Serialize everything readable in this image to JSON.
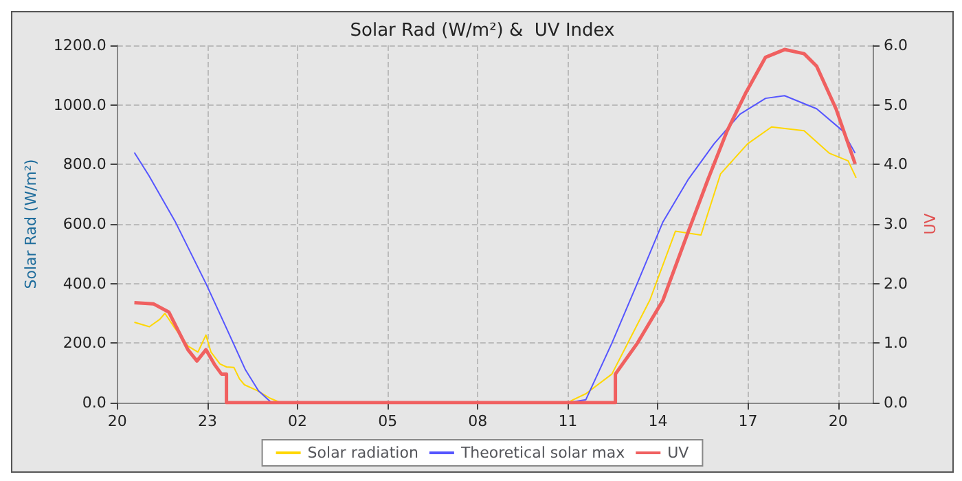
{
  "chart_data": {
    "type": "line",
    "title": "Solar Rad (W/m²) &  UV Index",
    "ylabel": "Solar Rad (W/m²)",
    "y2label": "UV",
    "xlim": [
      "--06-01T20:00",
      "--06-02T21:09"
    ],
    "xticks": [
      {
        "value": "--06-01T20:00",
        "label": "20"
      },
      {
        "value": "--06-01T23:00",
        "label": "23"
      },
      {
        "value": "--06-02T02:00",
        "label": "02"
      },
      {
        "value": "--06-02T05:00",
        "label": "05"
      },
      {
        "value": "--06-02T08:00",
        "label": "08"
      },
      {
        "value": "--06-02T11:00",
        "label": "11"
      },
      {
        "value": "--06-02T14:00",
        "label": "14"
      },
      {
        "value": "--06-02T17:00",
        "label": "17"
      },
      {
        "value": "--06-02T20:00",
        "label": "20"
      }
    ],
    "ylim": [
      0,
      1200
    ],
    "yticks": [
      {
        "value": 0,
        "label": "0.0"
      },
      {
        "value": 200,
        "label": "200.0"
      },
      {
        "value": 400,
        "label": "400.0"
      },
      {
        "value": 600,
        "label": "600.0"
      },
      {
        "value": 800,
        "label": "800.0"
      },
      {
        "value": 1000,
        "label": "1000.0"
      },
      {
        "value": 1200,
        "label": "1200.0"
      }
    ],
    "y2lim": [
      0,
      6
    ],
    "y2ticks": [
      {
        "value": 0,
        "label": "0.0"
      },
      {
        "value": 1,
        "label": "1.0"
      },
      {
        "value": 2,
        "label": "2.0"
      },
      {
        "value": 3,
        "label": "3.0"
      },
      {
        "value": 4,
        "label": "4.0"
      },
      {
        "value": 5,
        "label": "5.0"
      },
      {
        "value": 6,
        "label": "6.0"
      }
    ],
    "grid": true,
    "legend": "bottom",
    "marker": "none",
    "line_style": "solid",
    "series": [
      {
        "name": "Solar radiation",
        "color": "#ffd700",
        "x": [
          "--06-01T20:34",
          "--06-01T21:04",
          "--06-01T21:25",
          "--06-01T21:35",
          "--06-01T21:55",
          "--06-01T22:21",
          "--06-01T22:41",
          "--06-01T22:57",
          "--06-01T23:07",
          "--06-01T23:25",
          "--06-01T23:38",
          "--06-01T23:53",
          "--06-02T00:04",
          "--06-02T00:14",
          "--06-02T00:40",
          "--06-02T01:05",
          "--06-02T01:26",
          "--06-02T11:00",
          "--06-02T11:11",
          "--06-02T11:36",
          "--06-02T12:28",
          "--06-02T13:44",
          "--06-02T14:35",
          "--06-02T15:26",
          "--06-02T16:05",
          "--06-02T16:59",
          "--06-02T17:47",
          "--06-02T18:52",
          "--06-02T19:42",
          "--06-02T20:20",
          "--06-02T20:36"
        ],
        "values": [
          270,
          255,
          280,
          300,
          250,
          190,
          170,
          227,
          170,
          130,
          120,
          118,
          80,
          60,
          40,
          15,
          0,
          0,
          10,
          30,
          96,
          345,
          576,
          563,
          768,
          869,
          926,
          913,
          838,
          812,
          755
        ]
      },
      {
        "name": "Theoretical solar max",
        "color": "#5555ff",
        "x": [
          "--06-01T20:34",
          "--06-01T21:04",
          "--06-01T21:55",
          "--06-01T22:57",
          "--06-01T23:38",
          "--06-02T00:16",
          "--06-02T00:42",
          "--06-02T01:08",
          "--06-02T11:00",
          "--06-02T11:36",
          "--06-02T12:28",
          "--06-02T13:19",
          "--06-02T14:10",
          "--06-02T15:01",
          "--06-02T15:52",
          "--06-02T16:44",
          "--06-02T17:35",
          "--06-02T18:13",
          "--06-02T19:17",
          "--06-02T20:09",
          "--06-02T20:34"
        ],
        "values": [
          840,
          760,
          610,
          400,
          250,
          110,
          40,
          0,
          0,
          10,
          200,
          402,
          607,
          751,
          869,
          969,
          1022,
          1031,
          987,
          913,
          838
        ]
      },
      {
        "name": "UV",
        "color": "#f06060",
        "axis": "y2",
        "x": [
          "--06-01T20:34",
          "--06-01T21:12",
          "--06-01T21:43",
          "--06-01T22:01",
          "--06-01T22:21",
          "--06-01T22:39",
          "--06-01T22:57",
          "--06-01T23:15",
          "--06-01T23:28",
          "--06-01T23:38",
          "--06-01T23:38",
          "--06-02T12:35",
          "--06-02T12:35",
          "--06-02T13:19",
          "--06-02T14:10",
          "--06-02T15:01",
          "--06-02T15:40",
          "--06-02T16:18",
          "--06-02T16:56",
          "--06-02T17:35",
          "--06-02T18:13",
          "--06-02T18:52",
          "--06-02T19:17",
          "--06-02T19:56",
          "--06-02T20:34"
        ],
        "values": [
          1.68,
          1.66,
          1.52,
          1.22,
          0.89,
          0.7,
          0.89,
          0.63,
          0.48,
          0.48,
          0,
          0,
          0.48,
          1.0,
          1.72,
          2.88,
          3.75,
          4.56,
          5.21,
          5.8,
          5.93,
          5.86,
          5.65,
          4.93,
          4.01
        ]
      }
    ]
  }
}
